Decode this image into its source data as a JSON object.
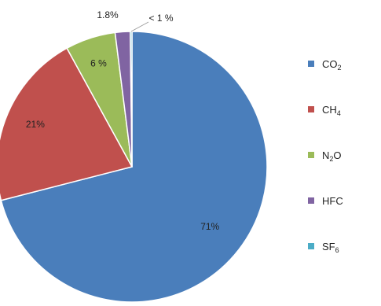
{
  "chart_data": {
    "type": "pie",
    "slices": [
      {
        "name": "CO2",
        "label_main": "CO",
        "label_sub": "2",
        "value": 71,
        "label": "71%",
        "color": "#4a7ebb"
      },
      {
        "name": "CH4",
        "label_main": "CH",
        "label_sub": "4",
        "value": 21,
        "label": "21%",
        "color": "#c0504d"
      },
      {
        "name": "N2O",
        "label_main": "N",
        "label_sub": "2",
        "label_post": "O",
        "value": 6,
        "label": "6 %",
        "color": "#9bbb59"
      },
      {
        "name": "HFC",
        "label_main": "HFC",
        "label_sub": "",
        "value": 1.8,
        "label": "1.8%",
        "color": "#8064a2"
      },
      {
        "name": "SF6",
        "label_main": "SF",
        "label_sub": "6",
        "value": 0.2,
        "label": "< 1 %",
        "color": "#4bacc6"
      }
    ],
    "legend_position": "right"
  }
}
